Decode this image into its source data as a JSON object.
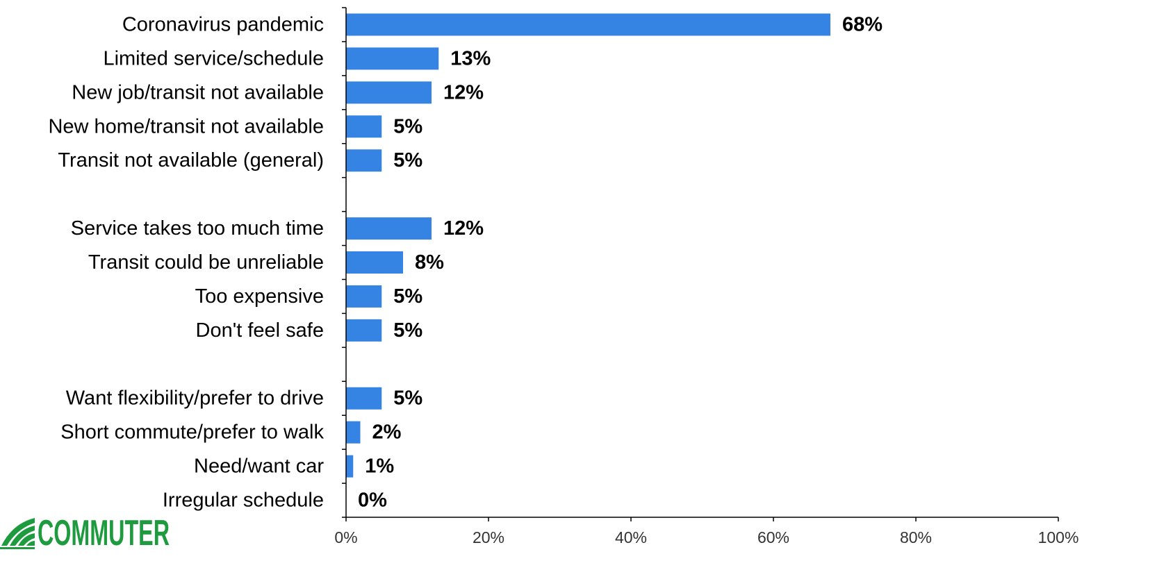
{
  "chart_data": {
    "type": "bar",
    "orientation": "horizontal",
    "categories": [
      "Coronavirus pandemic",
      "Limited service/schedule",
      "New job/transit not available",
      "New home/transit not available",
      "Transit not available (general)",
      "",
      "Service takes too much time",
      "Transit could be unreliable",
      "Too expensive",
      "Don't feel safe",
      "",
      "Want flexibility/prefer to drive",
      "Short commute/prefer to walk",
      "Need/want car",
      "Irregular schedule"
    ],
    "values": [
      68,
      13,
      12,
      5,
      5,
      null,
      12,
      8,
      5,
      5,
      null,
      5,
      2,
      1,
      0
    ],
    "data_labels": [
      "68%",
      "13%",
      "12%",
      "5%",
      "5%",
      "",
      "12%",
      "8%",
      "5%",
      "5%",
      "",
      "5%",
      "2%",
      "1%",
      "0%"
    ],
    "xlim": [
      0,
      100
    ],
    "x_ticks": [
      "0%",
      "20%",
      "40%",
      "60%",
      "80%",
      "100%"
    ],
    "bar_color": "#3584e4",
    "grid": false,
    "title": "",
    "xlabel": "",
    "ylabel": ""
  },
  "logo": {
    "text": "COMMUTER",
    "color": "#1f9b3f"
  }
}
